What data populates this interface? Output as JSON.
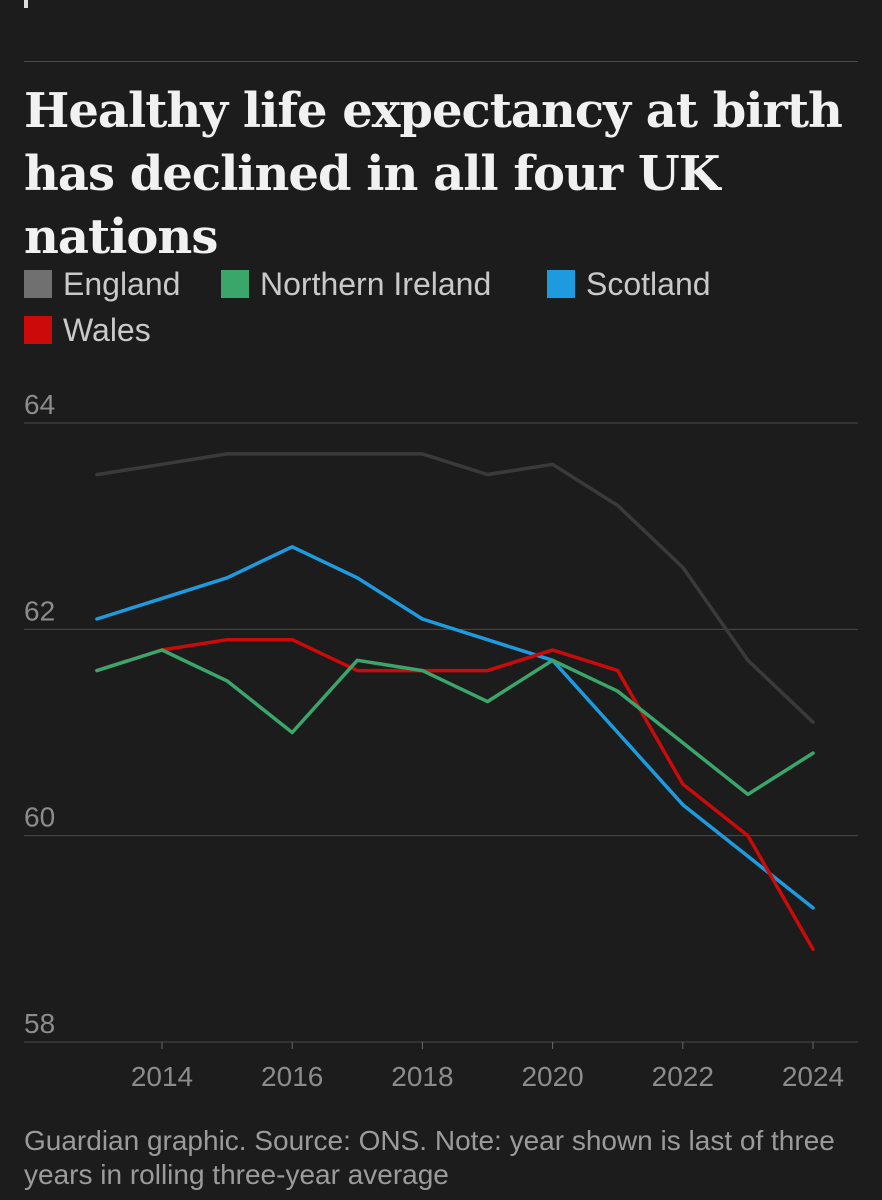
{
  "title": "Healthy life expectancy at birth has declined in all four UK nations",
  "footnote": "Guardian graphic. Source: ONS. Note: year shown is last of three years in rolling three-year average",
  "legend": [
    {
      "label": "England",
      "color": "#707070"
    },
    {
      "label": "Northern Ireland",
      "color": "#3aa66a"
    },
    {
      "label": "Scotland",
      "color": "#1e9bdf"
    },
    {
      "label": "Wales",
      "color": "#cc0a0a"
    }
  ],
  "chart_data": {
    "type": "line",
    "title": "Healthy life expectancy at birth has declined in all four UK nations",
    "xlabel": "",
    "ylabel": "",
    "x": [
      2013,
      2014,
      2015,
      2016,
      2017,
      2018,
      2019,
      2020,
      2021,
      2022,
      2023,
      2024
    ],
    "xticks": [
      2014,
      2016,
      2018,
      2020,
      2022,
      2024
    ],
    "yticks": [
      58,
      60,
      62,
      64
    ],
    "xlim": [
      2012,
      2024.7
    ],
    "ylim": [
      58,
      64
    ],
    "grid": "horizontal",
    "legend_position": "top",
    "series": [
      {
        "name": "England",
        "color": "#3a3a3a",
        "values": [
          63.5,
          63.6,
          63.7,
          63.7,
          63.7,
          63.7,
          63.5,
          63.6,
          63.2,
          62.6,
          61.7,
          61.1
        ]
      },
      {
        "name": "Scotland",
        "color": "#1e9bdf",
        "values": [
          62.1,
          62.3,
          62.5,
          62.8,
          62.5,
          62.1,
          61.9,
          61.7,
          61.0,
          60.3,
          59.8,
          59.3
        ]
      },
      {
        "name": "Wales",
        "color": "#cc0a0a",
        "values": [
          61.6,
          61.8,
          61.9,
          61.9,
          61.6,
          61.6,
          61.6,
          61.8,
          61.6,
          60.5,
          60.0,
          58.9
        ]
      },
      {
        "name": "Northern Ireland",
        "color": "#3aa66a",
        "values": [
          61.6,
          61.8,
          61.5,
          61.0,
          61.7,
          61.6,
          61.3,
          61.7,
          61.4,
          60.9,
          60.4,
          60.8
        ]
      }
    ]
  }
}
